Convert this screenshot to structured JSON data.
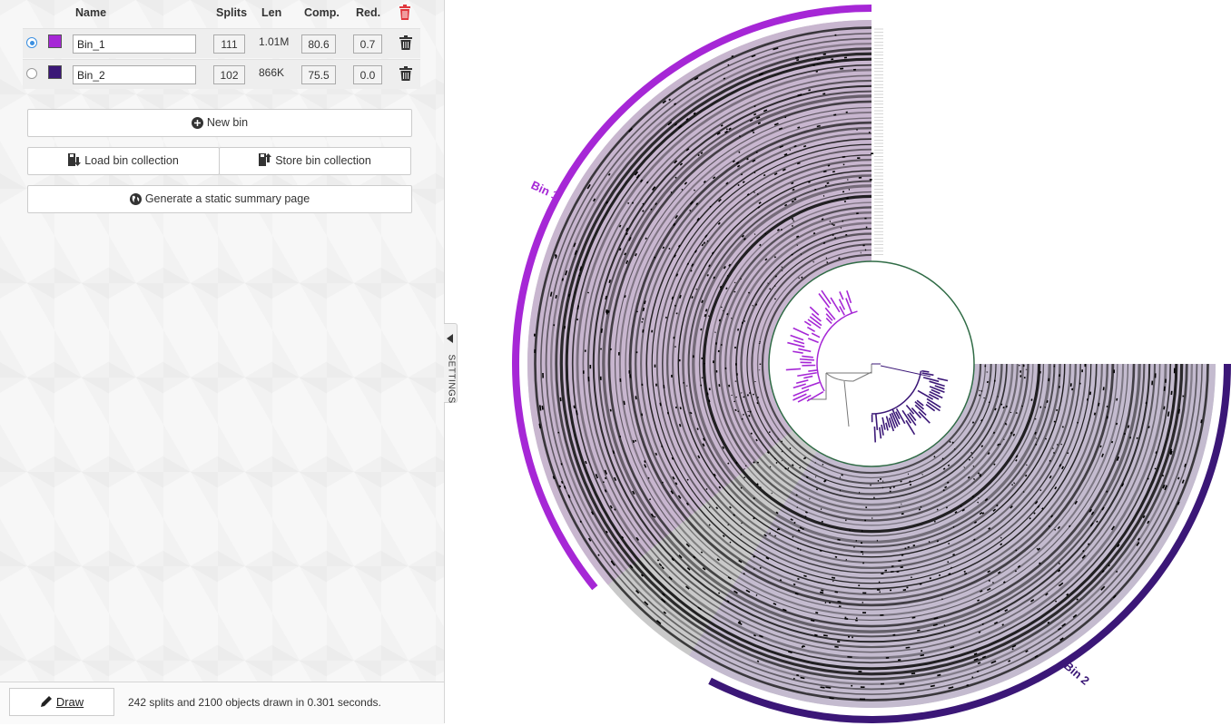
{
  "colors": {
    "bin1": "#a627d6",
    "bin2": "#3b1777",
    "accent": "#3b8fe0",
    "delete_all": "#e0383e"
  },
  "table": {
    "headers": {
      "name": "Name",
      "splits": "Splits",
      "len": "Len",
      "comp": "Comp.",
      "red": "Red."
    },
    "rows": [
      {
        "selected": true,
        "name": "Bin_1",
        "splits": "111",
        "len": "1.01M",
        "comp": "80.6",
        "red": "0.7",
        "color": "#a627d6"
      },
      {
        "selected": false,
        "name": "Bin_2",
        "splits": "102",
        "len": "866K",
        "comp": "75.5",
        "red": "0.0",
        "color": "#3b1777"
      }
    ]
  },
  "buttons": {
    "new_bin": "New bin",
    "load_collection": "Load bin collection",
    "store_collection": "Store bin collection",
    "summary": "Generate a static summary page",
    "draw": "Draw"
  },
  "status": "242 splits and 2100 objects drawn in 0.301 seconds.",
  "settings_tab": "SETTINGS",
  "viz": {
    "bin1_label": "Bin 1",
    "bin2_label": "Bin 2",
    "split_count": 242,
    "bin1_splits": 111,
    "bin2_splits": 102
  }
}
